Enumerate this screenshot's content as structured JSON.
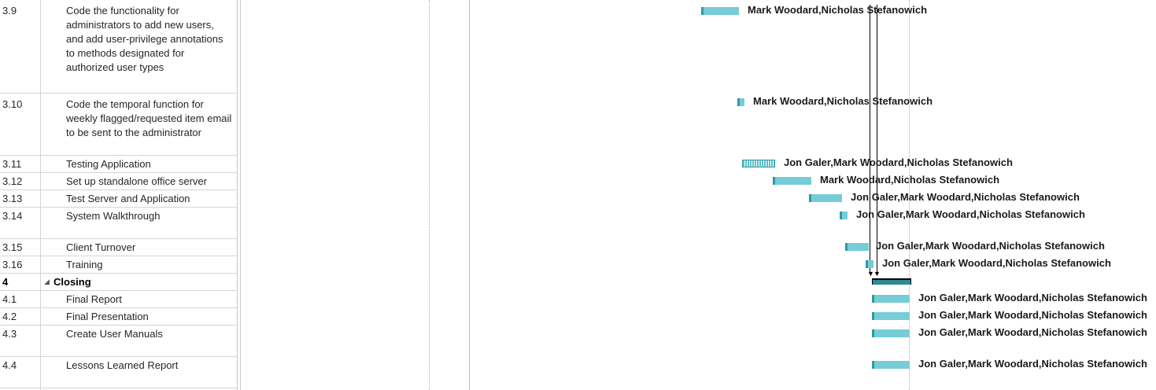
{
  "tasks": [
    {
      "id": "3.9",
      "name": "Code the functionality for administrators to add new users, and add user-privilege annotations to methods designated for authorized user types",
      "resources": "Mark Woodard,Nicholas Stefanowich"
    },
    {
      "id": "3.10",
      "name": "Code the temporal function for weekly flagged/requested item email to be sent to the administrator",
      "resources": "Mark Woodard,Nicholas Stefanowich"
    },
    {
      "id": "3.11",
      "name": "Testing Application",
      "resources": "Jon Galer,Mark Woodard,Nicholas Stefanowich"
    },
    {
      "id": "3.12",
      "name": "Set up standalone office server",
      "resources": "Mark Woodard,Nicholas Stefanowich"
    },
    {
      "id": "3.13",
      "name": "Test Server and Application",
      "resources": "Jon Galer,Mark Woodard,Nicholas Stefanowich"
    },
    {
      "id": "3.14",
      "name": "System Walkthrough",
      "resources": "Jon Galer,Mark Woodard,Nicholas Stefanowich"
    },
    {
      "id": "3.15",
      "name": "Client Turnover",
      "resources": "Jon Galer,Mark Woodard,Nicholas Stefanowich"
    },
    {
      "id": "3.16",
      "name": "Training",
      "resources": "Jon Galer,Mark Woodard,Nicholas Stefanowich"
    },
    {
      "id": "4",
      "name": "Closing",
      "resources": ""
    },
    {
      "id": "4.1",
      "name": "Final Report",
      "resources": "Jon Galer,Mark Woodard,Nicholas Stefanowich"
    },
    {
      "id": "4.2",
      "name": "Final Presentation",
      "resources": "Jon Galer,Mark Woodard,Nicholas Stefanowich"
    },
    {
      "id": "4.3",
      "name": "Create User Manuals",
      "resources": "Jon Galer,Mark Woodard,Nicholas Stefanowich"
    },
    {
      "id": "4.4",
      "name": "Lessons Learned Report",
      "resources": "Jon Galer,Mark Woodard,Nicholas Stefanowich"
    }
  ],
  "colors": {
    "task_bar": "#76cdd6",
    "task_bar_cap": "#2f9aa6",
    "summary_bar": "#2b8a94",
    "grid": "#d4d4d4"
  }
}
